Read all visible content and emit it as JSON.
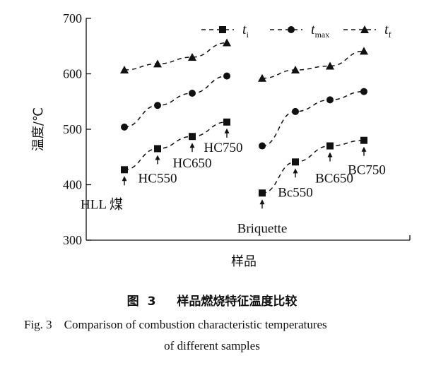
{
  "chart_data": {
    "type": "line",
    "ylabel": "温度/℃",
    "xlabel": "样品",
    "ylim": [
      300,
      700
    ],
    "yticks": [
      300,
      400,
      500,
      600,
      700
    ],
    "legend_position": "top-right",
    "grid": false,
    "groups": [
      [
        "HLL 煤",
        "HC550",
        "HC650",
        "HC750"
      ],
      [
        "Briquette",
        "Bc550",
        "BC650",
        "BC750"
      ]
    ],
    "series": [
      {
        "name": "ti",
        "symbol": "square",
        "values": [
          [
            427,
            465,
            487,
            513
          ],
          [
            385,
            441,
            470,
            480
          ]
        ]
      },
      {
        "name": "tmax",
        "symbol": "circle",
        "values": [
          [
            504,
            543,
            565,
            596
          ],
          [
            470,
            532,
            553,
            568
          ]
        ]
      },
      {
        "name": "tf",
        "symbol": "triangle",
        "values": [
          [
            607,
            618,
            630,
            656
          ],
          [
            592,
            607,
            614,
            641
          ]
        ]
      }
    ],
    "legend": [
      {
        "main": "t",
        "sub": "i"
      },
      {
        "main": "t",
        "sub": "max"
      },
      {
        "main": "t",
        "sub": "f"
      }
    ]
  },
  "caption": {
    "cn_fig": "图 3",
    "cn_title": "样品燃烧特征温度比较",
    "en_line1": "Fig. 3    Comparison of combustion characteristic temperatures",
    "en_line2": "of different samples"
  }
}
